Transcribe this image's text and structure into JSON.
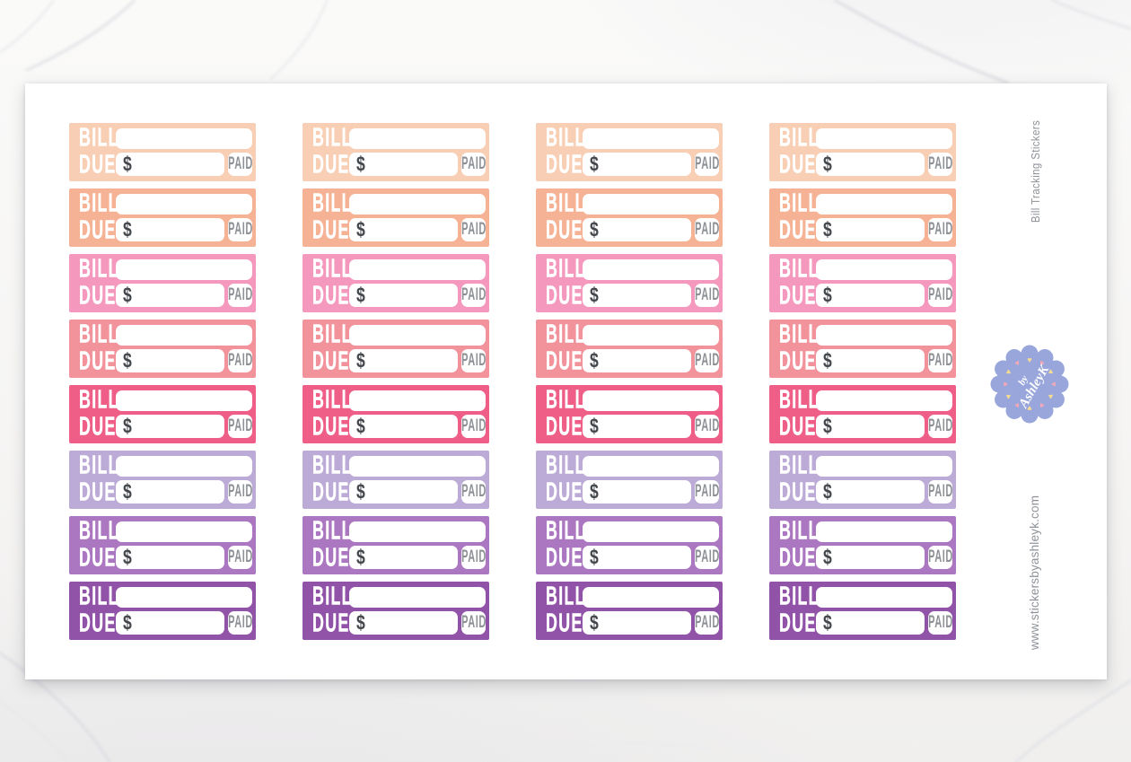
{
  "scene": {
    "description": "sticker sheet product photo on marble surface",
    "sheet_color": "#ffffff",
    "marble_vein_color": "#dfdfe4"
  },
  "sheet": {
    "side_title": "Bill Tracking Stickers",
    "website": "www.stickersbyashleyk.com",
    "caption_color": "#8e9297"
  },
  "sticker": {
    "bill_label": "BILL",
    "due_label": "DUE",
    "currency_symbol": "$",
    "paid_label": "PAID",
    "label_color": "#ffffff",
    "dollar_color": "#43474c",
    "paid_text_color": "#8d9196",
    "field_color": "#ffffff"
  },
  "grid": {
    "rows": 8,
    "columns": 4,
    "total_stickers": 32,
    "row_colors": [
      {
        "name": "light-peach",
        "hex": "#f8cfb4"
      },
      {
        "name": "peach",
        "hex": "#f6b294"
      },
      {
        "name": "pink",
        "hex": "#f499bd"
      },
      {
        "name": "salmon",
        "hex": "#f2929b"
      },
      {
        "name": "raspberry",
        "hex": "#ee5e87"
      },
      {
        "name": "lavender",
        "hex": "#bcaad7"
      },
      {
        "name": "orchid",
        "hex": "#ab77c1"
      },
      {
        "name": "purple",
        "hex": "#9053a7"
      }
    ]
  },
  "badge": {
    "line1": "by",
    "line2": "AshleyK",
    "background": "#98a6db",
    "text_color": "#ffffff",
    "heart_glyph": "♥",
    "heart_count": 12,
    "heart_colors": [
      "#f6db92",
      "#f3a8ba"
    ]
  }
}
